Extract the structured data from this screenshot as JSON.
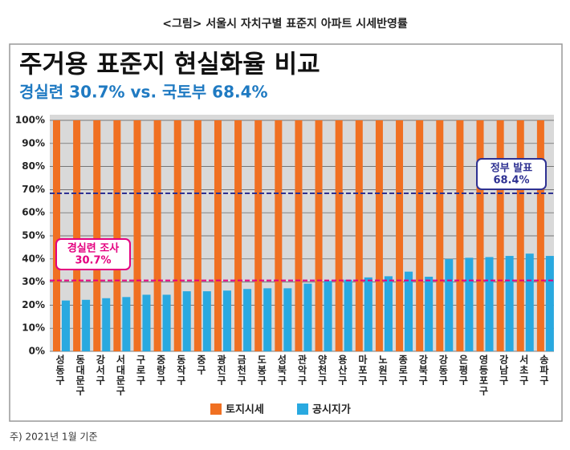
{
  "chart_data": {
    "type": "bar",
    "caption": "<그림> 서울시 자치구별 표준지 아파트 시세반영률",
    "title": "주거용 표준지 현실화율 비교",
    "subtitle": "경실련 30.7% vs. 국토부 68.4%",
    "footnote": "주) 2021년 1월 기준",
    "categories": [
      "성동구",
      "동대문구",
      "강서구",
      "서대문구",
      "구로구",
      "중랑구",
      "동작구",
      "중구",
      "광진구",
      "금천구",
      "도봉구",
      "성북구",
      "관악구",
      "양천구",
      "용산구",
      "마포구",
      "노원구",
      "종로구",
      "강북구",
      "강동구",
      "은평구",
      "영등포구",
      "강남구",
      "서초구",
      "송파구"
    ],
    "series": [
      {
        "name": "토지시세",
        "color": "#f07022",
        "values": [
          100,
          100,
          100,
          100,
          100,
          100,
          100,
          100,
          100,
          100,
          100,
          100,
          100,
          100,
          100,
          100,
          100,
          100,
          100,
          100,
          100,
          100,
          100,
          100,
          100
        ]
      },
      {
        "name": "공시지가",
        "color": "#29a9e0",
        "values": [
          22,
          22.3,
          23,
          23.5,
          24.5,
          24.5,
          26,
          26,
          26.3,
          27,
          27.3,
          27.3,
          29.3,
          30.5,
          31,
          32,
          32.5,
          34.5,
          32.3,
          40,
          40.5,
          40.8,
          41.3,
          42.3,
          41.3
        ]
      }
    ],
    "annotations": [
      {
        "label": "경실련 조사",
        "value_label": "30.7%",
        "value": 30.7,
        "color": "#e4007f"
      },
      {
        "label": "정부 발표",
        "value_label": "68.4%",
        "value": 68.4,
        "color": "#2e3192"
      }
    ],
    "ylim": [
      0,
      100
    ],
    "yticks": [
      {
        "value": 0,
        "label": "0%"
      },
      {
        "value": 10,
        "label": "10%"
      },
      {
        "value": 20,
        "label": "20%"
      },
      {
        "value": 30,
        "label": "30%"
      },
      {
        "value": 40,
        "label": "40%"
      },
      {
        "value": 50,
        "label": "50%"
      },
      {
        "value": 60,
        "label": "60%"
      },
      {
        "value": 70,
        "label": "70%"
      },
      {
        "value": 80,
        "label": "80%"
      },
      {
        "value": 90,
        "label": "90%"
      },
      {
        "value": 100,
        "label": "100%"
      }
    ],
    "grid": true
  }
}
